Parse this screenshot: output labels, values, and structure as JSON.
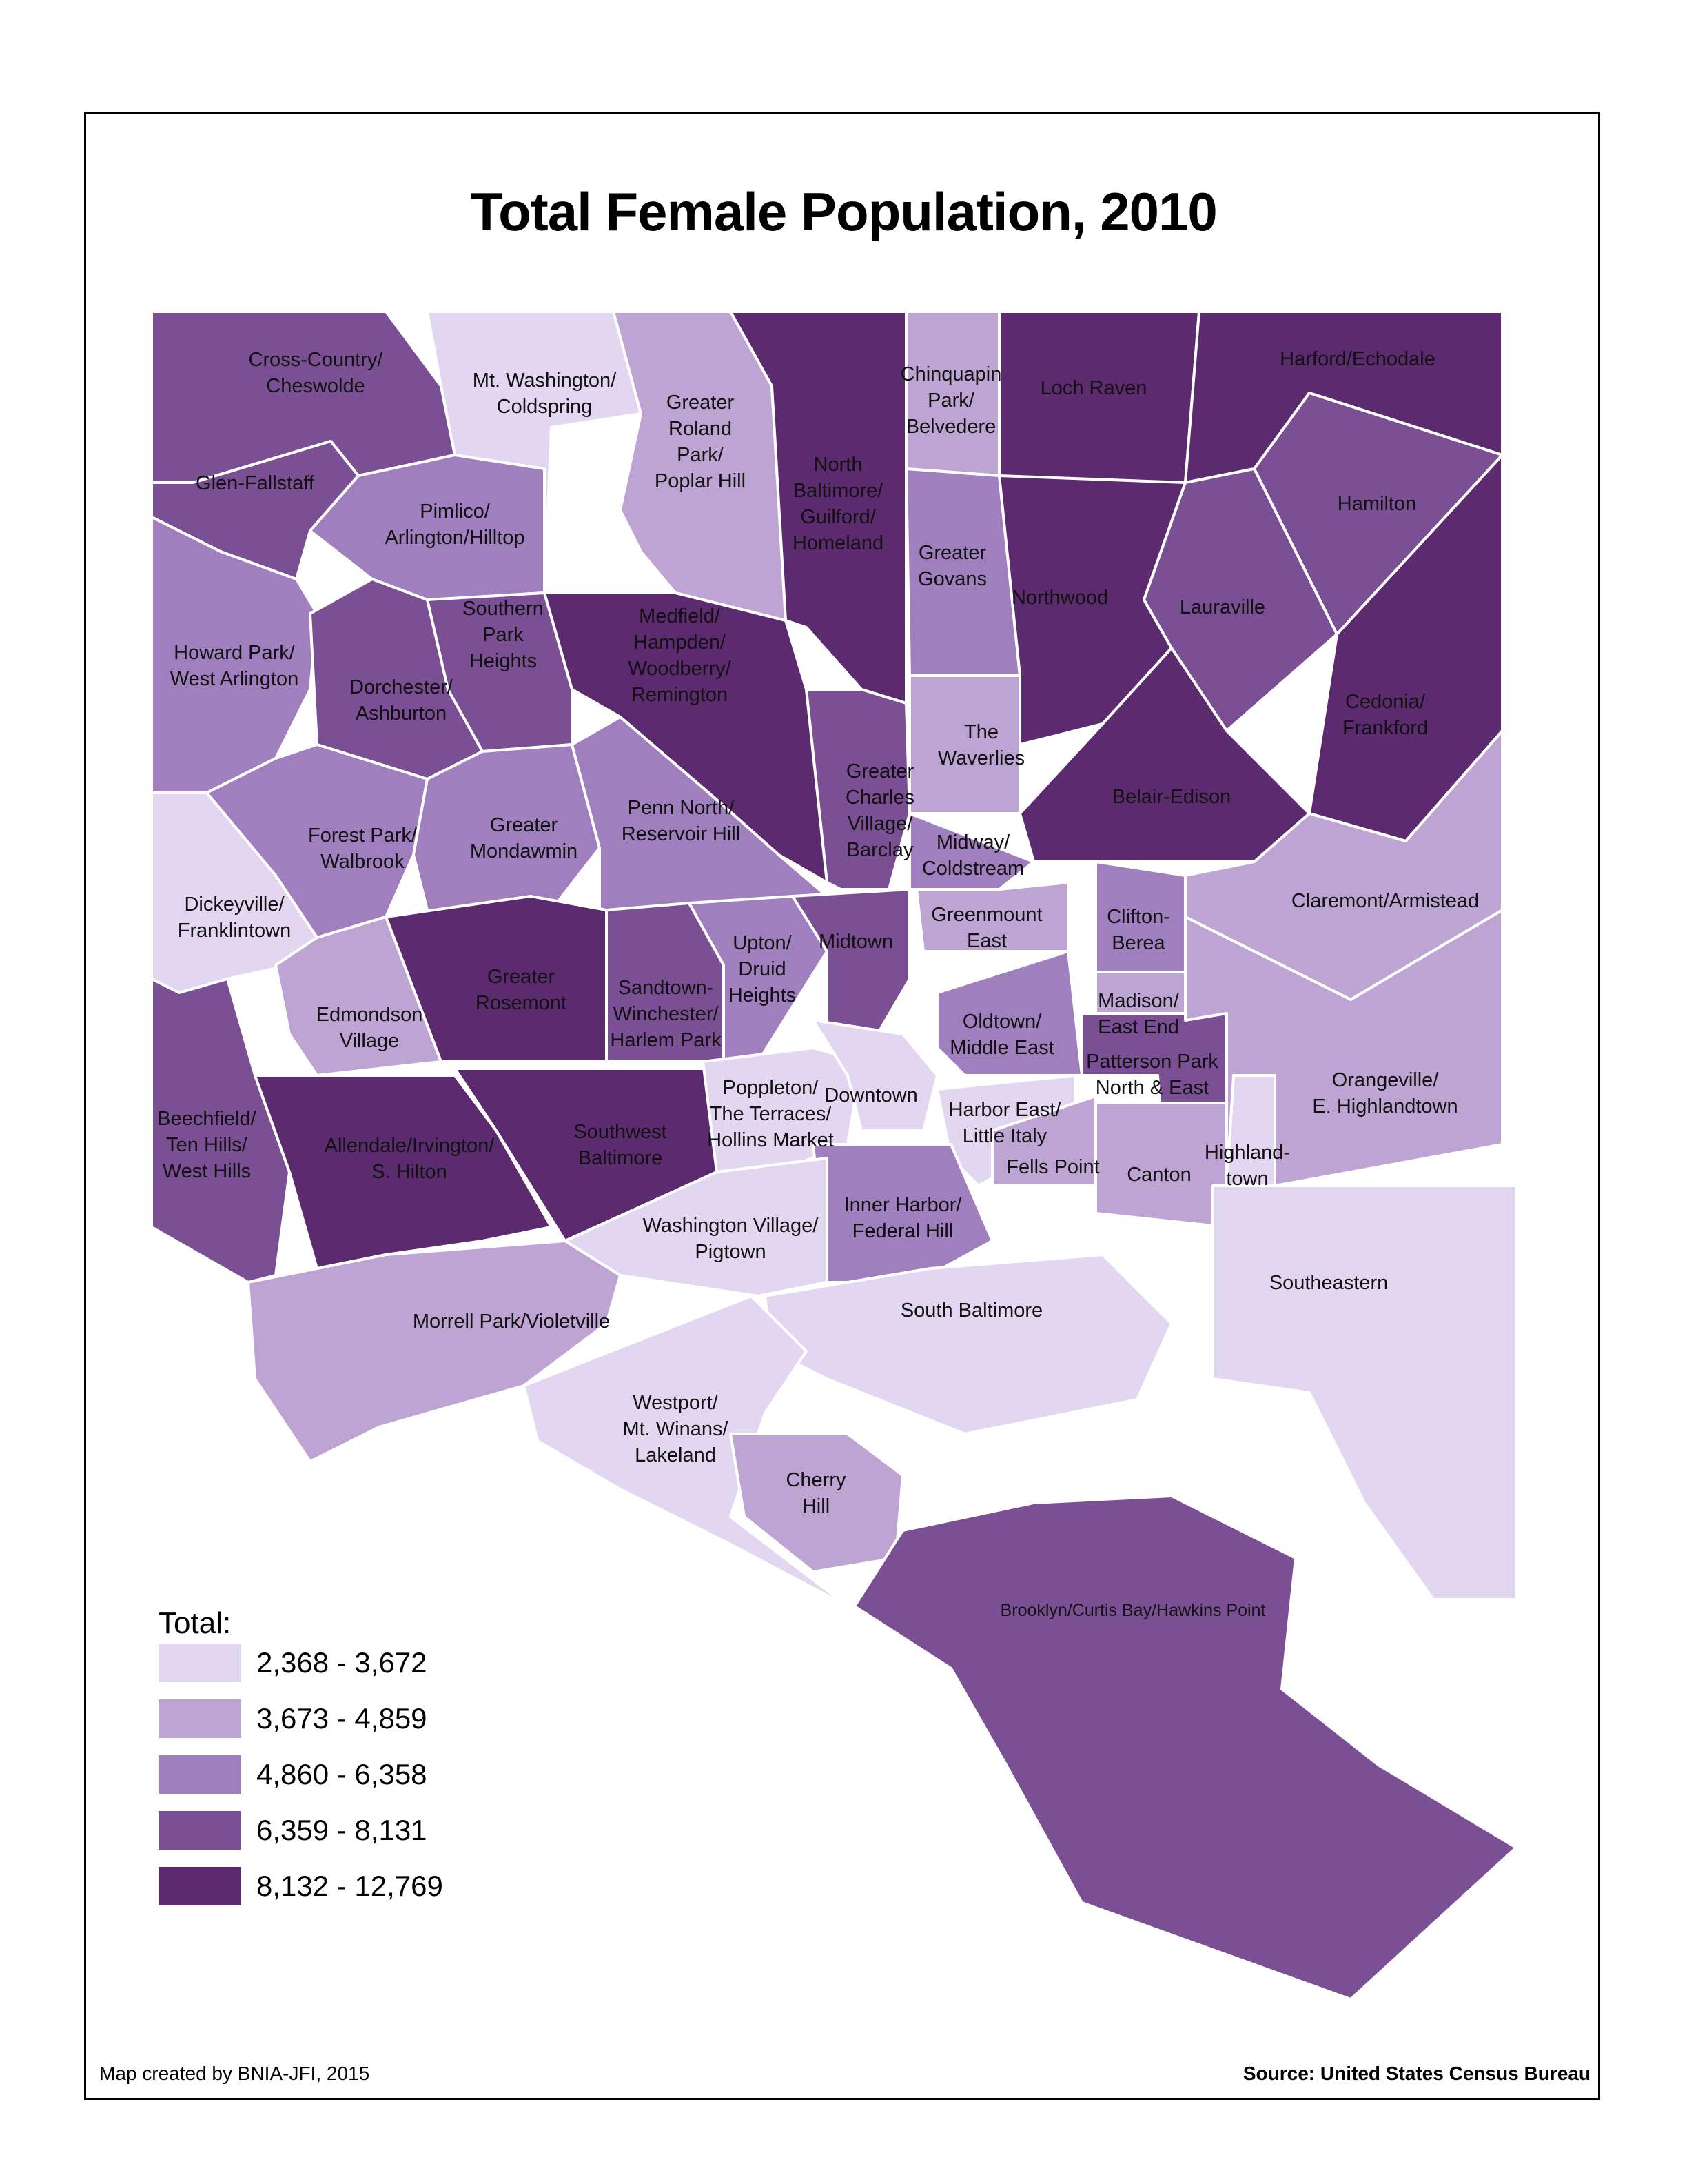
{
  "map": {
    "title": "Total Female Population, 2010",
    "credit": "Map created by BNIA-JFI, 2015",
    "source": "Source: United States Census Bureau",
    "legend": {
      "title": "Total:",
      "classes": [
        {
          "range": "2,368 - 3,672",
          "color": "#e3d6f1"
        },
        {
          "range": "3,673 - 4,859",
          "color": "#bda4d2"
        },
        {
          "range": "4,860 - 6,358",
          "color": "#9f7fbd"
        },
        {
          "range": "6,359 - 8,131",
          "color": "#7a4f93"
        },
        {
          "range": "8,132 - 12,769",
          "color": "#5c2a6e"
        }
      ]
    },
    "neighborhoods": [
      {
        "name": "Cross-Country/ Cheswolde",
        "lines": [
          "Cross-Country/",
          "Cheswolde"
        ],
        "class": 3
      },
      {
        "name": "Mt. Washington/ Coldspring",
        "lines": [
          "Mt. Washington/",
          "Coldspring"
        ],
        "class": 0
      },
      {
        "name": "Greater Roland Park/ Poplar Hill",
        "lines": [
          "Greater",
          "Roland",
          "Park/",
          "Poplar Hill"
        ],
        "class": 1
      },
      {
        "name": "North Baltimore/ Guilford/ Homeland",
        "lines": [
          "North",
          "Baltimore/",
          "Guilford/",
          "Homeland"
        ],
        "class": 4
      },
      {
        "name": "Chinquapin Park/ Belvedere",
        "lines": [
          "Chinquapin",
          "Park/",
          "Belvedere"
        ],
        "class": 1
      },
      {
        "name": "Loch Raven",
        "lines": [
          "Loch Raven"
        ],
        "class": 4
      },
      {
        "name": "Harford/Echodale",
        "lines": [
          "Harford/Echodale"
        ],
        "class": 4
      },
      {
        "name": "Glen-Fallstaff",
        "lines": [
          "Glen-Fallstaff"
        ],
        "class": 3
      },
      {
        "name": "Pimlico/ Arlington/Hilltop",
        "lines": [
          "Pimlico/",
          "Arlington/Hilltop"
        ],
        "class": 2
      },
      {
        "name": "Hamilton",
        "lines": [
          "Hamilton"
        ],
        "class": 3
      },
      {
        "name": "Greater Govans",
        "lines": [
          "Greater",
          "Govans"
        ],
        "class": 2
      },
      {
        "name": "Northwood",
        "lines": [
          "Northwood"
        ],
        "class": 4
      },
      {
        "name": "Lauraville",
        "lines": [
          "Lauraville"
        ],
        "class": 3
      },
      {
        "name": "Howard Park/ West Arlington",
        "lines": [
          "Howard Park/",
          "West Arlington"
        ],
        "class": 2
      },
      {
        "name": "Southern Park Heights",
        "lines": [
          "Southern",
          "Park",
          "Heights"
        ],
        "class": 3
      },
      {
        "name": "Medfield/ Hampden/ Woodberry/ Remington",
        "lines": [
          "Medfield/",
          "Hampden/",
          "Woodberry/",
          "Remington"
        ],
        "class": 4
      },
      {
        "name": "Dorchester/ Ashburton",
        "lines": [
          "Dorchester/",
          "Ashburton"
        ],
        "class": 3
      },
      {
        "name": "The Waverlies",
        "lines": [
          "The",
          "Waverlies"
        ],
        "class": 1
      },
      {
        "name": "Cedonia/ Frankford",
        "lines": [
          "Cedonia/",
          "Frankford"
        ],
        "class": 4
      },
      {
        "name": "Greater Charles Village/ Barclay",
        "lines": [
          "Greater",
          "Charles",
          "Village/",
          "Barclay"
        ],
        "class": 3
      },
      {
        "name": "Belair-Edison",
        "lines": [
          "Belair-Edison"
        ],
        "class": 4
      },
      {
        "name": "Forest Park/ Walbrook",
        "lines": [
          "Forest Park/",
          "Walbrook"
        ],
        "class": 2
      },
      {
        "name": "Greater Mondawmin",
        "lines": [
          "Greater",
          "Mondawmin"
        ],
        "class": 2
      },
      {
        "name": "Penn North/ Reservoir Hill",
        "lines": [
          "Penn North/",
          "Reservoir Hill"
        ],
        "class": 2
      },
      {
        "name": "Midway/ Coldstream",
        "lines": [
          "Midway/",
          "Coldstream"
        ],
        "class": 2
      },
      {
        "name": "Dickeyville/ Franklintown",
        "lines": [
          "Dickeyville/",
          "Franklintown"
        ],
        "class": 0
      },
      {
        "name": "Claremont/Armistead",
        "lines": [
          "Claremont/Armistead"
        ],
        "class": 1
      },
      {
        "name": "Greenmount East",
        "lines": [
          "Greenmount",
          "East"
        ],
        "class": 1
      },
      {
        "name": "Clifton- Berea",
        "lines": [
          "Clifton-",
          "Berea"
        ],
        "class": 2
      },
      {
        "name": "Greater Rosemont",
        "lines": [
          "Greater",
          "Rosemont"
        ],
        "class": 4
      },
      {
        "name": "Sandtown- Winchester/ Harlem Park",
        "lines": [
          "Sandtown-",
          "Winchester/",
          "Harlem Park"
        ],
        "class": 3
      },
      {
        "name": "Upton/ Druid Heights",
        "lines": [
          "Upton/",
          "Druid",
          "Heights"
        ],
        "class": 2
      },
      {
        "name": "Midtown",
        "lines": [
          "Midtown"
        ],
        "class": 3
      },
      {
        "name": "Edmondson Village",
        "lines": [
          "Edmondson",
          "Village"
        ],
        "class": 1
      },
      {
        "name": "Madison/ East End",
        "lines": [
          "Madison/",
          "East End"
        ],
        "class": 1
      },
      {
        "name": "Oldtown/ Middle East",
        "lines": [
          "Oldtown/",
          "Middle East"
        ],
        "class": 2
      },
      {
        "name": "Patterson Park North & East",
        "lines": [
          "Patterson Park",
          "North & East"
        ],
        "class": 3
      },
      {
        "name": "Orangeville/ E. Highlandtown",
        "lines": [
          "Orangeville/",
          "E. Highlandtown"
        ],
        "class": 1
      },
      {
        "name": "Beechfield/ Ten Hills/ West Hills",
        "lines": [
          "Beechfield/",
          "Ten Hills/",
          "West Hills"
        ],
        "class": 3
      },
      {
        "name": "Allendale/Irvington/ S. Hilton",
        "lines": [
          "Allendale/Irvington/",
          "S. Hilton"
        ],
        "class": 4
      },
      {
        "name": "Southwest Baltimore",
        "lines": [
          "Southwest",
          "Baltimore"
        ],
        "class": 4
      },
      {
        "name": "Poppleton/ The Terraces/ Hollins Market",
        "lines": [
          "Poppleton/",
          "The Terraces/",
          "Hollins Market"
        ],
        "class": 0
      },
      {
        "name": "Downtown",
        "lines": [
          "Downtown"
        ],
        "class": 0
      },
      {
        "name": "Harbor East/ Little Italy",
        "lines": [
          "Harbor East/",
          "Little Italy"
        ],
        "class": 0
      },
      {
        "name": "Highland- town",
        "lines": [
          "Highland-",
          "town"
        ],
        "class": 0
      },
      {
        "name": "Fells Point",
        "lines": [
          "Fells Point"
        ],
        "class": 1
      },
      {
        "name": "Canton",
        "lines": [
          "Canton"
        ],
        "class": 1
      },
      {
        "name": "Inner Harbor/ Federal Hill",
        "lines": [
          "Inner Harbor/",
          "Federal Hill"
        ],
        "class": 2
      },
      {
        "name": "Washington Village/ Pigtown",
        "lines": [
          "Washington Village/",
          "Pigtown"
        ],
        "class": 0
      },
      {
        "name": "Southeastern",
        "lines": [
          "Southeastern"
        ],
        "class": 0
      },
      {
        "name": "South Baltimore",
        "lines": [
          "South Baltimore"
        ],
        "class": 0
      },
      {
        "name": "Morrell Park/Violetville",
        "lines": [
          "Morrell Park/Violetville"
        ],
        "class": 1
      },
      {
        "name": "Westport/ Mt. Winans/ Lakeland",
        "lines": [
          "Westport/",
          "Mt. Winans/",
          "Lakeland"
        ],
        "class": 0
      },
      {
        "name": "Cherry Hill",
        "lines": [
          "Cherry",
          "Hill"
        ],
        "class": 1
      },
      {
        "name": "Brooklyn/Curtis Bay/Hawkins Point",
        "lines": [
          "Brooklyn/Curtis Bay/Hawkins Point"
        ],
        "class": 3
      }
    ]
  }
}
